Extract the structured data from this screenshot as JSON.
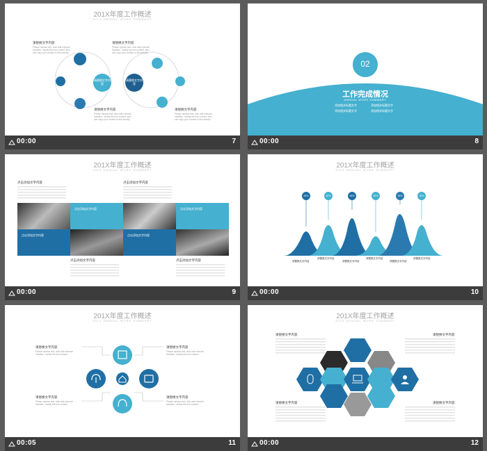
{
  "slides": [
    {
      "number": "7",
      "time": "00:00",
      "title": "201X年度工作概述",
      "subtitle": "201X ANNUAL WORK SUMMARY",
      "label": "请替换文字内容",
      "para": "Please replace text, click add relevant headline, modify the text content, also can copy your content to this directly.",
      "big_left": "请替换文字内容",
      "big_right": "请替换文字内容",
      "small": "请替换文字内容"
    },
    {
      "number": "8",
      "time": "00:00",
      "badge": "02",
      "heading": "工作完成情况",
      "sub": "ANNUAL WORK SUMMARY",
      "bullets": [
        "添加相关标题文字",
        "添加相关标题文字",
        "添加相关标题文字",
        "添加相关标题文字"
      ]
    },
    {
      "number": "9",
      "time": "00:00",
      "title": "201X年度工作概述",
      "subtitle": "201X ANNUAL WORK SUMMARY",
      "label": "点击添加文字内容",
      "box_label": "点击添加文字内容",
      "box_text": "添加相关标题文字添加相关标题文字添加相关标题文字添加相关标题文字"
    },
    {
      "number": "10",
      "time": "00:00",
      "title": "201X年度工作概述",
      "subtitle": "201X ANNUAL WORK SUMMARY",
      "pins": [
        "30%",
        "30%",
        "30%",
        "30%",
        "30%",
        "30%"
      ],
      "label": "请替换文字内容"
    },
    {
      "number": "11",
      "time": "00:05",
      "title": "201X年度工作概述",
      "subtitle": "201X ANNUAL WORK SUMMARY",
      "label": "请替换文字内容",
      "para": "Please replace text, click add relevant headline, modify the text content."
    },
    {
      "number": "12",
      "time": "00:00",
      "title": "201X年度工作概述",
      "subtitle": "201X ANNUAL WORK SUMMARY",
      "label": "请替换文字内容"
    }
  ],
  "colors": {
    "dark": "#1f5f8f",
    "mid": "#2a7ab0",
    "light": "#45b0cf",
    "bg": "#5b5b5b"
  }
}
